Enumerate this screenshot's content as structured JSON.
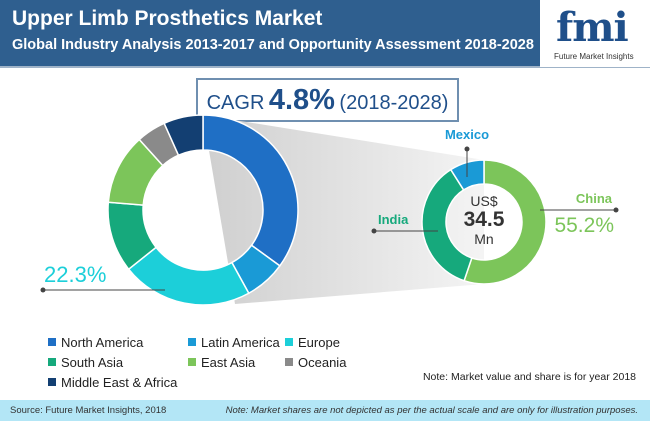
{
  "header": {
    "title": "Upper Limb Prosthetics Market",
    "subtitle": "Global Industry Analysis 2013-2017 and Opportunity Assessment 2018-2028"
  },
  "logo": {
    "text": "fmi",
    "tagline": "Future Market Insights"
  },
  "cagr": {
    "label": "CAGR",
    "value": "4.8%",
    "period": "(2018-2028)"
  },
  "chart_data": [
    {
      "type": "pie",
      "variant": "donut",
      "categories": [
        "North America",
        "Latin America",
        "Europe",
        "South Asia",
        "East Asia",
        "Oceania",
        "Middle East & Africa"
      ],
      "values": [
        35,
        7,
        22.3,
        12,
        12,
        5,
        6.7
      ],
      "colors": [
        "#1f6fc5",
        "#1a9ad6",
        "#1ccfd9",
        "#16a97c",
        "#7cc55a",
        "#8a8a8a",
        "#133f72"
      ],
      "labels": {
        "Europe": "22.3%"
      },
      "legend_placement": "bottom-left"
    },
    {
      "type": "pie",
      "variant": "donut",
      "categories": [
        "China",
        "India",
        "Mexico"
      ],
      "values": [
        55.2,
        35.8,
        9
      ],
      "colors": [
        "#7cc55a",
        "#16a97c",
        "#1a9ad6"
      ],
      "center": {
        "currency": "US$",
        "value": "34.5",
        "unit": "Mn"
      },
      "labels": {
        "China": "55.2%"
      }
    }
  ],
  "legend": [
    "North America",
    "Latin America",
    "Europe",
    "South Asia",
    "East Asia",
    "Oceania",
    "Middle East & Africa"
  ],
  "note": "Note: Market value and share is for year 2018",
  "footer": {
    "source": "Source: Future Market Insights, 2018",
    "disclaimer": "Note: Market shares are not depicted as per the actual scale and are only for illustration purposes."
  }
}
